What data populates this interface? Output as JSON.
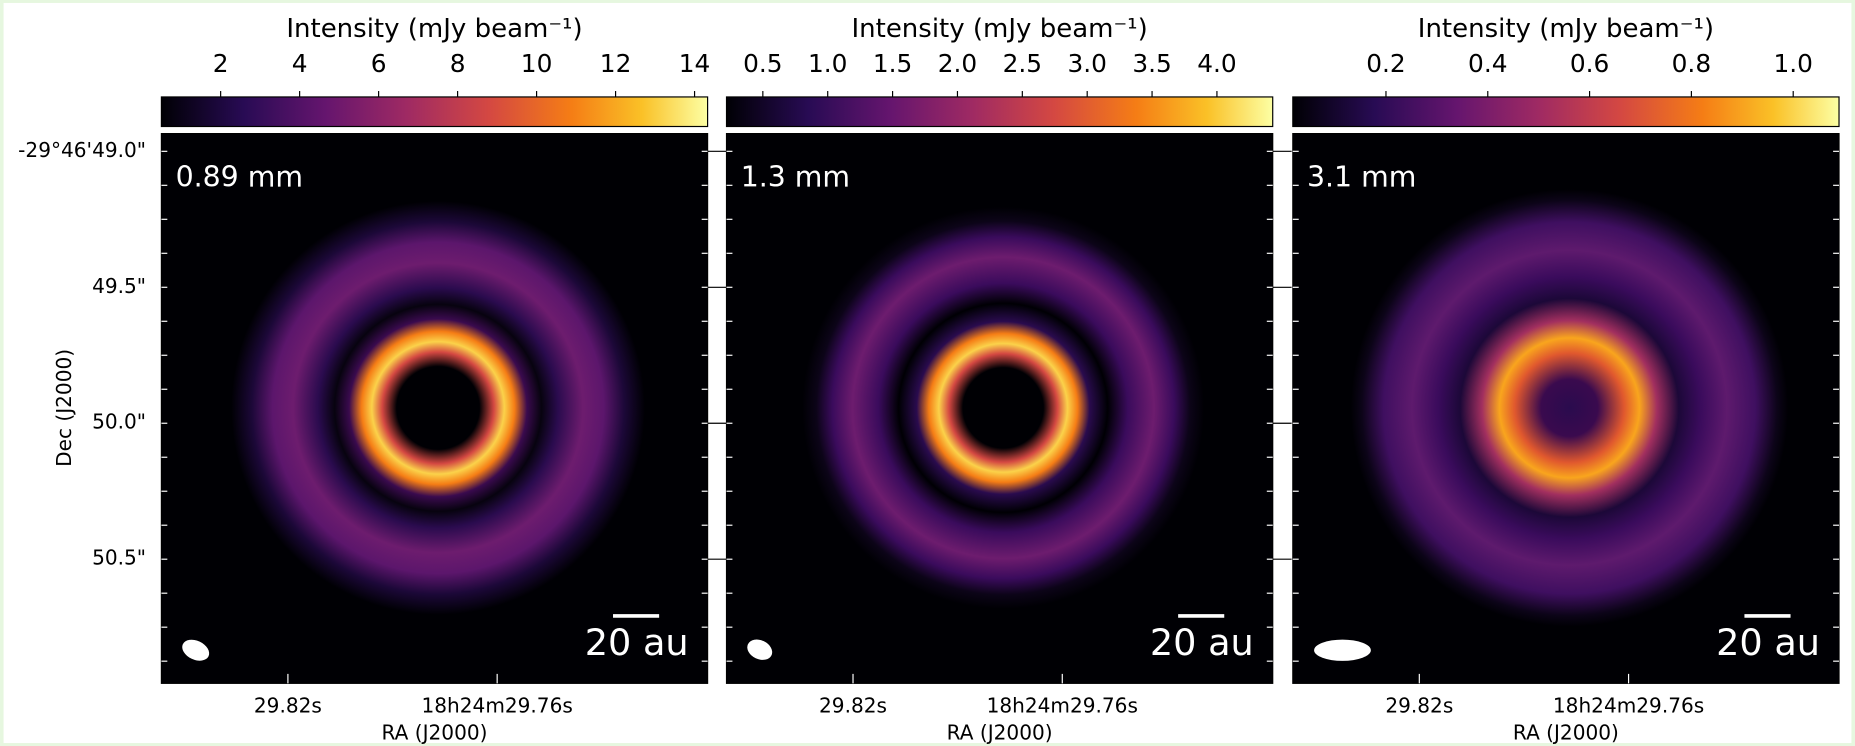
{
  "panels": [
    {
      "wavelength": "0.89 mm",
      "scale_bar": "20 au",
      "colorbar": {
        "label": "Intensity (mJy beam⁻¹)",
        "lim": [
          0.5,
          14.33
        ],
        "ticks": [
          2,
          4,
          6,
          8,
          10,
          12,
          14
        ]
      }
    },
    {
      "wavelength": "1.3 mm",
      "scale_bar": "20 au",
      "colorbar": {
        "label": "Intensity (mJy beam⁻¹)",
        "lim": [
          0.22,
          4.43
        ],
        "ticks": [
          0.5,
          {
            "value": 1,
            "label": "1.0"
          },
          1.5,
          {
            "value": 2,
            "label": "2.0"
          },
          2.5,
          {
            "value": 3,
            "label": "3.0"
          },
          3.5,
          {
            "value": 4,
            "label": "4.0"
          }
        ]
      }
    },
    {
      "wavelength": "3.1 mm",
      "scale_bar": "20 au",
      "colorbar": {
        "label": "Intensity (mJy beam⁻¹)",
        "lim": [
          0.017,
          1.09
        ],
        "ticks": [
          0.2,
          0.4,
          0.6,
          0.8,
          {
            "value": 1,
            "label": "1.0"
          }
        ]
      }
    }
  ],
  "ra_axis": {
    "label": "RA (J2000)",
    "ticks": [
      "29.82s",
      "18h24m29.76s"
    ]
  },
  "dec_axis": {
    "label": "Dec (J2000)",
    "ticks": [
      "-29°46'49.0\"",
      "49.5\"",
      "50.0\"",
      "50.5\""
    ]
  }
}
